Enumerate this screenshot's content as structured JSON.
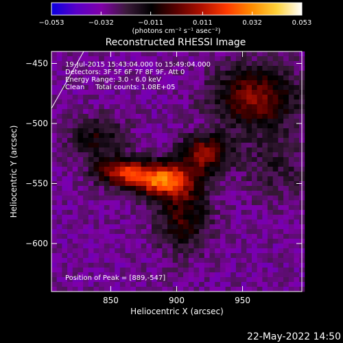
{
  "chart_data": {
    "type": "heatmap",
    "title": "Reconstructed RHESSI Image",
    "xlabel": "Heliocentric X (arcsec)",
    "ylabel": "Heliocentric Y (arcsec)",
    "xlim": [
      805,
      995
    ],
    "ylim": [
      -640,
      -440
    ],
    "x_ticks": [
      850,
      900,
      950
    ],
    "x_tick_labels": [
      "850",
      "900",
      "950"
    ],
    "y_ticks": [
      -450,
      -500,
      -550,
      -600
    ],
    "y_tick_labels": [
      "−450",
      "−500",
      "−550",
      "−600"
    ],
    "colorbar": {
      "range": [
        -0.053,
        0.053
      ],
      "ticks": [
        -0.053,
        -0.032,
        -0.011,
        0.011,
        0.032,
        0.053
      ],
      "tick_labels": [
        "−0.053",
        "−0.032",
        "−0.011",
        "0.011",
        "0.032",
        "0.053"
      ],
      "unit_label": "(photons cm⁻² s⁻¹ asec⁻²)",
      "colormap": [
        "#0a00e0",
        "#5a00c8",
        "#8000a8",
        "#3a1a3a",
        "#000000",
        "#5a0000",
        "#b01000",
        "#ff3a00",
        "#ff8c00",
        "#ffd23a",
        "#ffffff"
      ]
    },
    "annotations": [
      "19-Jul-2015 15:43:04.000 to 15:49:04.000",
      "Detectors: 3F 5F 6F 7F 8F 9F, Att 0",
      "Energy Range: 3.0 - 6.0 keV",
      "Clean     Total counts: 1.08E+05"
    ],
    "peak_text": "Position of Peak = [889,-547]",
    "peak": {
      "x": 889,
      "y": -547,
      "value": 0.053
    },
    "components": [
      {
        "x": 889,
        "y": -547,
        "amp": 0.055,
        "sx": 16,
        "sy": 9
      },
      {
        "x": 858,
        "y": -540,
        "amp": 0.04,
        "sx": 14,
        "sy": 8
      },
      {
        "x": 922,
        "y": -525,
        "amp": 0.035,
        "sx": 13,
        "sy": 11
      },
      {
        "x": 960,
        "y": -478,
        "amp": 0.034,
        "sx": 22,
        "sy": 18
      },
      {
        "x": 905,
        "y": -575,
        "amp": 0.026,
        "sx": 14,
        "sy": 22
      },
      {
        "x": 840,
        "y": -512,
        "amp": 0.02,
        "sx": 16,
        "sy": 12
      },
      {
        "x": 975,
        "y": -535,
        "amp": 0.012,
        "sx": 18,
        "sy": 20
      }
    ],
    "background_level": -0.03
  },
  "footer_date": "22-May-2022 14:50"
}
